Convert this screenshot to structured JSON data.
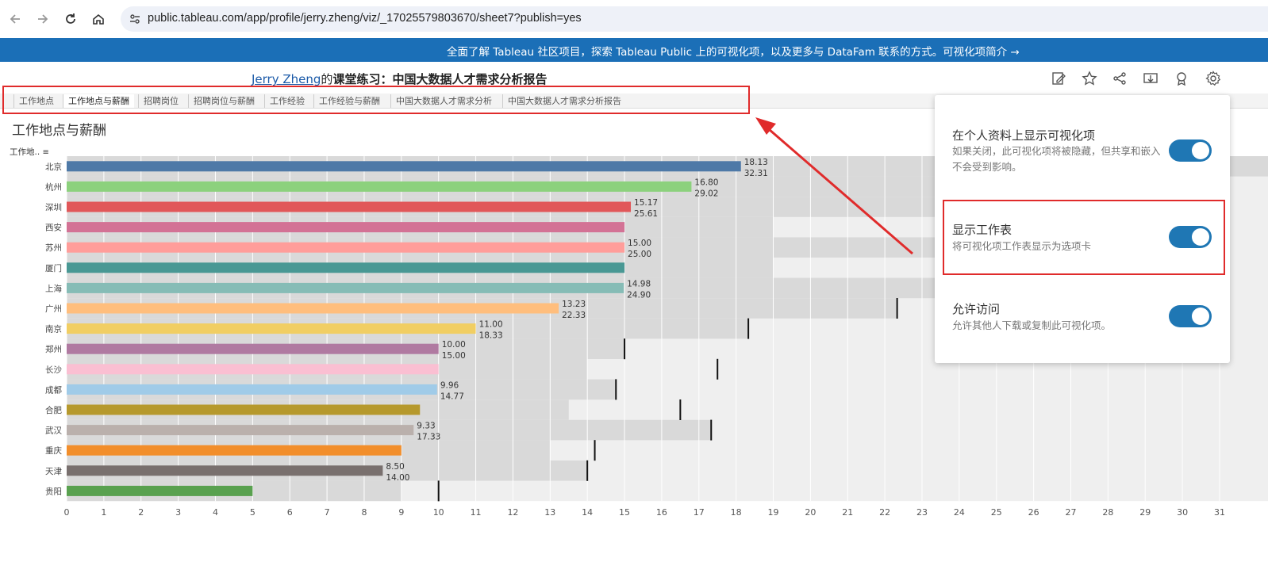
{
  "browser": {
    "url": "public.tableau.com/app/profile/jerry.zheng/viz/_17025579803670/sheet7?publish=yes",
    "icons": [
      "back-icon",
      "forward-icon",
      "reload-icon",
      "home-icon",
      "site-info-icon"
    ]
  },
  "banner": {
    "text": "全面了解 Tableau 社区项目，探索 Tableau Public 上的可视化项，以及更多与 DataFam 联系的方式。可视化项简介 →"
  },
  "viz": {
    "author": "Jerry Zheng",
    "author_suffix": "的",
    "title": "课堂练习：中国大数据人才需求分析报告"
  },
  "toolbar_icons": [
    "edit-icon",
    "favorite-star-icon",
    "share-icon",
    "download-icon",
    "badge-icon",
    "settings-gear-icon"
  ],
  "tabs": [
    {
      "label": "工作地点"
    },
    {
      "label": "工作地点与薪酬"
    },
    {
      "label": "招聘岗位"
    },
    {
      "label": "招聘岗位与薪酬"
    },
    {
      "label": "工作经验"
    },
    {
      "label": "工作经验与薪酬"
    },
    {
      "label": "中国大数据人才需求分析"
    },
    {
      "label": "中国大数据人才需求分析报告"
    }
  ],
  "active_tab": "工作地点与薪酬",
  "sheet": {
    "title": "工作地点与薪酬",
    "axis_header": "工作地..",
    "sort_icon": "sort-icon"
  },
  "chart_data": {
    "type": "bar",
    "categories": [
      "北京",
      "杭州",
      "深圳",
      "西安",
      "苏州",
      "厦门",
      "上海",
      "广州",
      "南京",
      "郑州",
      "长沙",
      "成都",
      "合肥",
      "武汉",
      "重庆",
      "天津",
      "贵阳"
    ],
    "series": [
      {
        "values": [
          18.13,
          16.8,
          15.17,
          15.0,
          15.0,
          15.0,
          14.98,
          13.23,
          11.0,
          10.0,
          10.0,
          9.96,
          9.5,
          9.33,
          9.0,
          8.5,
          5.0
        ]
      }
    ],
    "upper_values": [
      32.31,
      29.02,
      25.61,
      null,
      25.0,
      null,
      24.9,
      22.33,
      18.33,
      15.0,
      null,
      14.77,
      null,
      17.33,
      null,
      14.0,
      null
    ],
    "labels_shown": [
      [
        "18.13",
        "32.31"
      ],
      [
        "16.80",
        "29.02"
      ],
      [
        "15.17",
        "25.61"
      ],
      [],
      [
        "15.00",
        "25.00"
      ],
      [],
      [
        "14.98",
        "24.90"
      ],
      [
        "13.23",
        "22.33"
      ],
      [
        "11.00",
        "18.33"
      ],
      [
        "10.00",
        "15.00"
      ],
      [],
      [
        "9.96",
        "14.77"
      ],
      [],
      [
        "9.33",
        "17.33"
      ],
      [],
      [
        "8.50",
        "14.00"
      ],
      []
    ],
    "reference_ticks": [
      null,
      null,
      null,
      null,
      null,
      null,
      null,
      22.33,
      18.33,
      15.0,
      17.5,
      14.77,
      16.5,
      17.33,
      14.2,
      14.0,
      10.0
    ],
    "colors": [
      "#4e79a7",
      "#8cd17d",
      "#e15759",
      "#d37295",
      "#ff9d9a",
      "#499894",
      "#86bcb6",
      "#ffbe7d",
      "#f1ce63",
      "#b07aa1",
      "#fabfd2",
      "#a0cbe8",
      "#b6992d",
      "#bab0ac",
      "#f28e2b",
      "#79706e",
      "#59a14f"
    ],
    "xlim": [
      0,
      31
    ],
    "xticks": [
      0,
      1,
      2,
      3,
      4,
      5,
      6,
      7,
      8,
      9,
      10,
      11,
      12,
      13,
      14,
      15,
      16,
      17,
      18,
      19,
      20,
      21,
      22,
      23,
      24,
      25,
      26,
      27,
      28,
      29,
      30,
      31
    ]
  },
  "settings": {
    "items": [
      {
        "title": "在个人资料上显示可视化项",
        "desc": "如果关闭，此可视化项将被隐藏，但共享和嵌入不会受到影响。",
        "on": true
      },
      {
        "title": "显示工作表",
        "desc": "将可视化项工作表显示为选项卡",
        "on": true
      },
      {
        "title": "允许访问",
        "desc": "允许其他人下载或复制此可视化项。",
        "on": true
      }
    ]
  },
  "annotation_color": "#e02b2b"
}
